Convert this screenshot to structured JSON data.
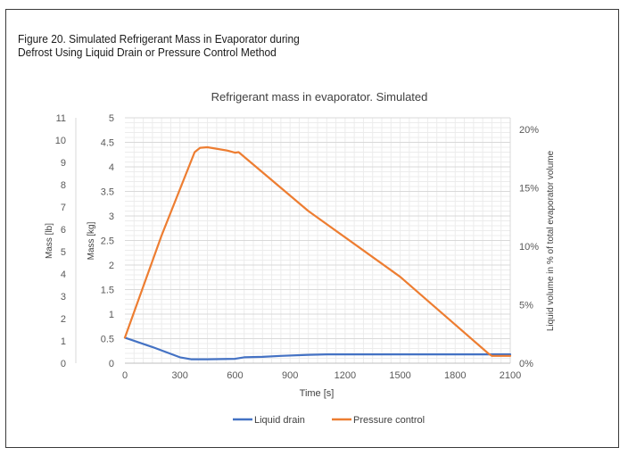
{
  "figure": {
    "caption_line1": "Figure 20. Simulated Refrigerant Mass in Evaporator during",
    "caption_line2": "Defrost Using Liquid Drain or Pressure Control Method"
  },
  "chart_data": {
    "type": "line",
    "title": "Refrigerant mass in evaporator. Simulated",
    "xlabel": "Time [s]",
    "ylabel": "Mass [kg]",
    "ylabel_lb": "Mass [lb]",
    "ylabel_right": "Liquid volume in % of total evaporator volume",
    "xlim": [
      0,
      2100
    ],
    "ylim": [
      0,
      5
    ],
    "ylim_lb": [
      0,
      11
    ],
    "ylim_right_percent": [
      0,
      20
    ],
    "x_ticks": [
      "0",
      "300",
      "600",
      "900",
      "1200",
      "1500",
      "1800",
      "2100"
    ],
    "y_ticks": [
      "0",
      "0.5",
      "1",
      "1.5",
      "2",
      "2.5",
      "3",
      "3.5",
      "4",
      "4.5",
      "5"
    ],
    "y_ticks_lb": [
      "0",
      "1",
      "2",
      "3",
      "4",
      "5",
      "6",
      "7",
      "8",
      "9",
      "10",
      "11"
    ],
    "y_ticks_right": [
      "0%",
      "5%",
      "10%",
      "15%",
      "20%"
    ],
    "grid": true,
    "legend_position": "bottom",
    "colors": {
      "liquid_drain": "#4472c4",
      "pressure_control": "#ed7d31"
    },
    "series": [
      {
        "name": "Liquid drain",
        "x": [
          0,
          150,
          300,
          360,
          450,
          600,
          650,
          750,
          850,
          1000,
          1100,
          1500,
          2000,
          2100
        ],
        "values": [
          0.52,
          0.33,
          0.12,
          0.08,
          0.08,
          0.09,
          0.12,
          0.13,
          0.15,
          0.17,
          0.18,
          0.18,
          0.18,
          0.18
        ]
      },
      {
        "name": "Pressure control",
        "x": [
          0,
          200,
          380,
          410,
          450,
          560,
          600,
          620,
          1000,
          1500,
          1980,
          2000,
          2100
        ],
        "values": [
          0.52,
          2.6,
          4.3,
          4.39,
          4.4,
          4.33,
          4.29,
          4.3,
          3.1,
          1.76,
          0.2,
          0.15,
          0.15
        ]
      }
    ]
  }
}
